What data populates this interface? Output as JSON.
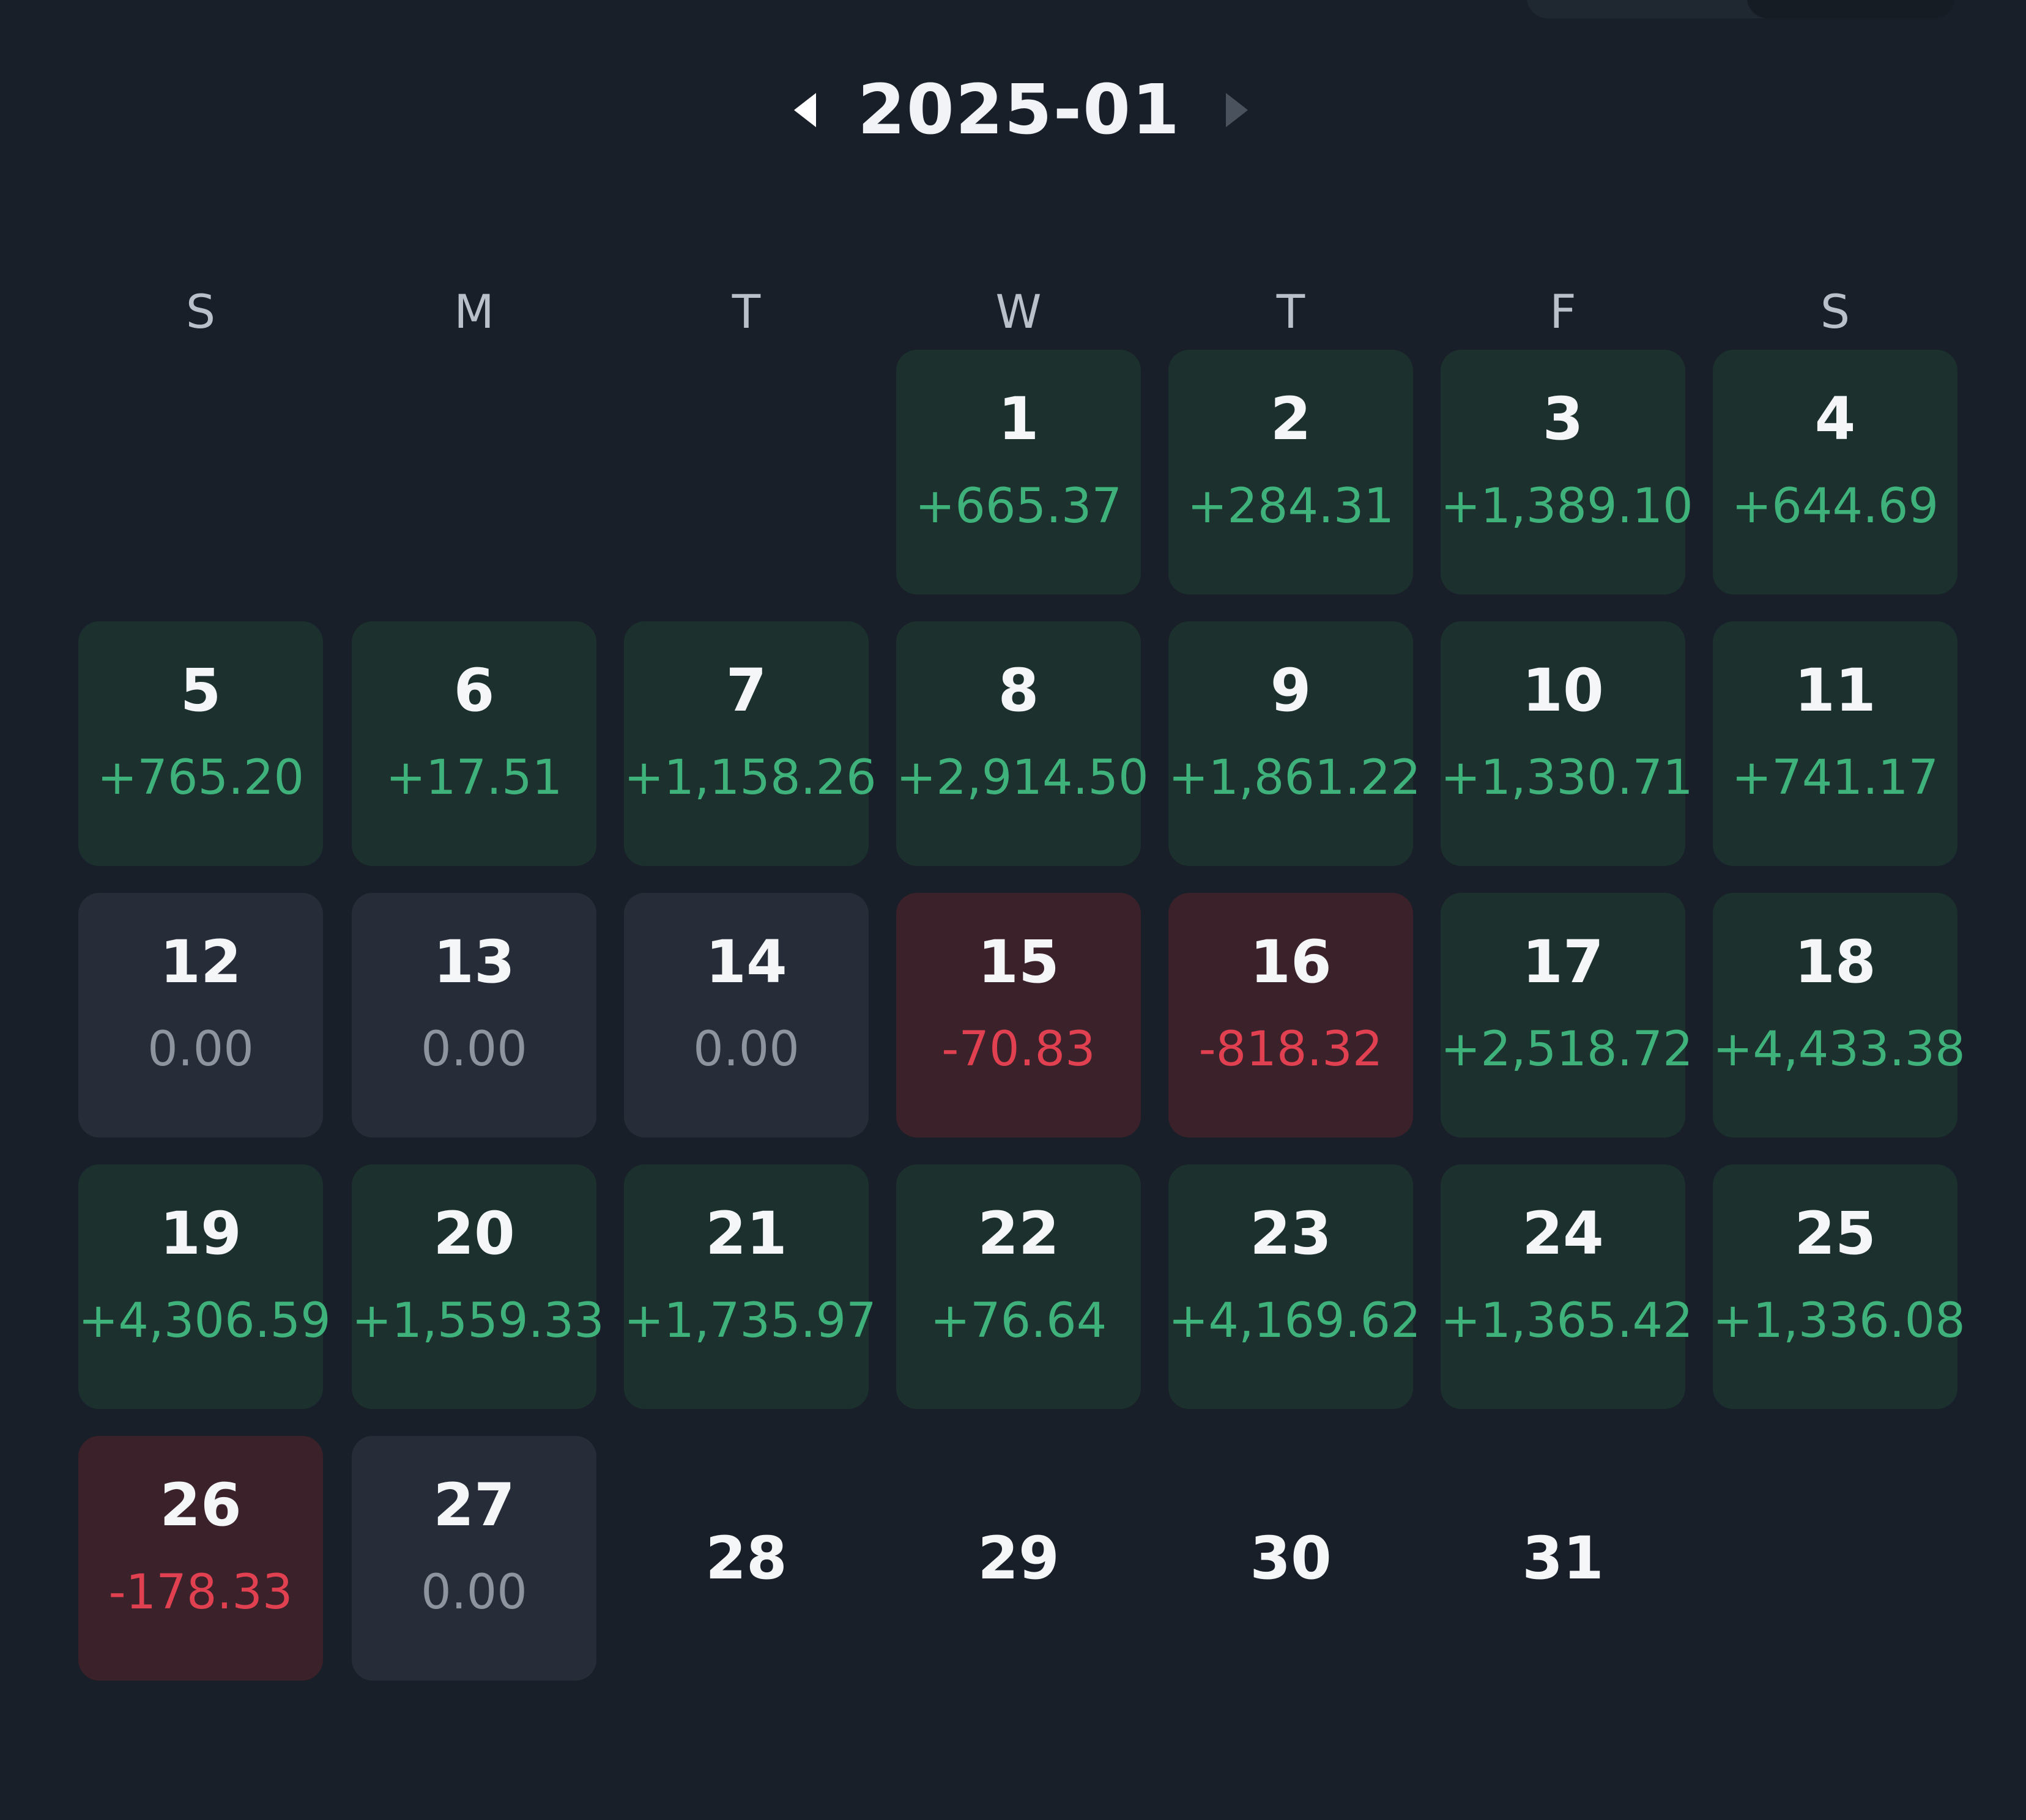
{
  "calendar": {
    "month_label": "2025-01",
    "prev_icon": "triangle-left-icon",
    "next_icon": "triangle-right-icon",
    "weekdays": [
      "S",
      "M",
      "T",
      "W",
      "T",
      "F",
      "S"
    ],
    "colors": {
      "positive": "#3fb27b",
      "negative": "#e0404f",
      "zero": "#8d949e"
    },
    "days": [
      {
        "day": "1",
        "value": "+665.37",
        "status": "pos"
      },
      {
        "day": "2",
        "value": "+284.31",
        "status": "pos"
      },
      {
        "day": "3",
        "value": "+1,389.10",
        "status": "pos"
      },
      {
        "day": "4",
        "value": "+644.69",
        "status": "pos"
      },
      {
        "day": "5",
        "value": "+765.20",
        "status": "pos"
      },
      {
        "day": "6",
        "value": "+17.51",
        "status": "pos"
      },
      {
        "day": "7",
        "value": "+1,158.26",
        "status": "pos"
      },
      {
        "day": "8",
        "value": "+2,914.50",
        "status": "pos"
      },
      {
        "day": "9",
        "value": "+1,861.22",
        "status": "pos"
      },
      {
        "day": "10",
        "value": "+1,330.71",
        "status": "pos"
      },
      {
        "day": "11",
        "value": "+741.17",
        "status": "pos"
      },
      {
        "day": "12",
        "value": "0.00",
        "status": "zero"
      },
      {
        "day": "13",
        "value": "0.00",
        "status": "zero"
      },
      {
        "day": "14",
        "value": "0.00",
        "status": "zero"
      },
      {
        "day": "15",
        "value": "-70.83",
        "status": "neg"
      },
      {
        "day": "16",
        "value": "-818.32",
        "status": "neg"
      },
      {
        "day": "17",
        "value": "+2,518.72",
        "status": "pos"
      },
      {
        "day": "18",
        "value": "+4,433.38",
        "status": "pos"
      },
      {
        "day": "19",
        "value": "+4,306.59",
        "status": "pos"
      },
      {
        "day": "20",
        "value": "+1,559.33",
        "status": "pos"
      },
      {
        "day": "21",
        "value": "+1,735.97",
        "status": "pos"
      },
      {
        "day": "22",
        "value": "+76.64",
        "status": "pos"
      },
      {
        "day": "23",
        "value": "+4,169.62",
        "status": "pos"
      },
      {
        "day": "24",
        "value": "+1,365.42",
        "status": "pos"
      },
      {
        "day": "25",
        "value": "+1,336.08",
        "status": "pos"
      },
      {
        "day": "26",
        "value": "-178.33",
        "status": "neg"
      },
      {
        "day": "27",
        "value": "0.00",
        "status": "zero"
      },
      {
        "day": "28",
        "value": "",
        "status": "empty"
      },
      {
        "day": "29",
        "value": "",
        "status": "empty"
      },
      {
        "day": "30",
        "value": "",
        "status": "empty"
      },
      {
        "day": "31",
        "value": "",
        "status": "empty"
      }
    ]
  }
}
